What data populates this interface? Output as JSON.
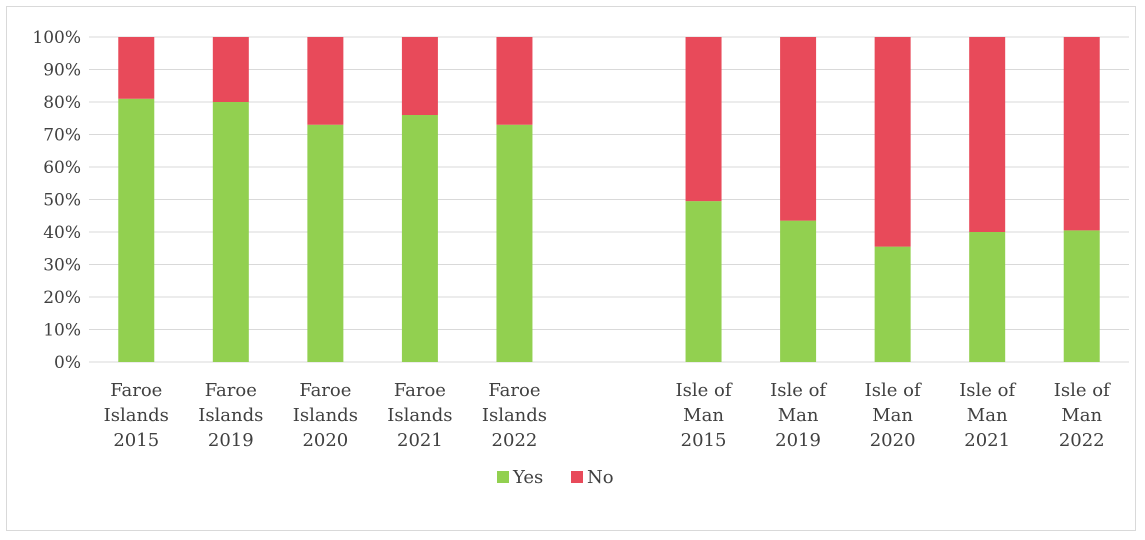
{
  "chart_data": {
    "type": "bar",
    "stacked": true,
    "percent": true,
    "categories": [
      [
        "Faroe",
        "Islands",
        "2015"
      ],
      [
        "Faroe",
        "Islands",
        "2019"
      ],
      [
        "Faroe",
        "Islands",
        "2020"
      ],
      [
        "Faroe",
        "Islands",
        "2021"
      ],
      [
        "Faroe",
        "Islands",
        "2022"
      ],
      [],
      [
        "Isle of",
        "Man",
        "2015"
      ],
      [
        "Isle of",
        "Man",
        "2019"
      ],
      [
        "Isle of",
        "Man",
        "2020"
      ],
      [
        "Isle of",
        "Man",
        "2021"
      ],
      [
        "Isle of",
        "Man",
        "2022"
      ]
    ],
    "series": [
      {
        "name": "Yes",
        "color": "#92d050",
        "values": [
          81,
          80,
          73,
          76,
          73,
          null,
          49.5,
          43.5,
          35.5,
          40,
          40.5
        ]
      },
      {
        "name": "No",
        "color": "#e84a5a",
        "values": [
          19,
          20,
          27,
          24,
          27,
          null,
          50.5,
          56.5,
          64.5,
          60,
          59.5
        ]
      }
    ],
    "yticks": [
      "0%",
      "10%",
      "20%",
      "30%",
      "40%",
      "50%",
      "60%",
      "70%",
      "80%",
      "90%",
      "100%"
    ],
    "ylim": [
      0,
      100
    ],
    "grid": true,
    "legend": "bottom",
    "title": "",
    "xlabel": "",
    "ylabel": ""
  }
}
